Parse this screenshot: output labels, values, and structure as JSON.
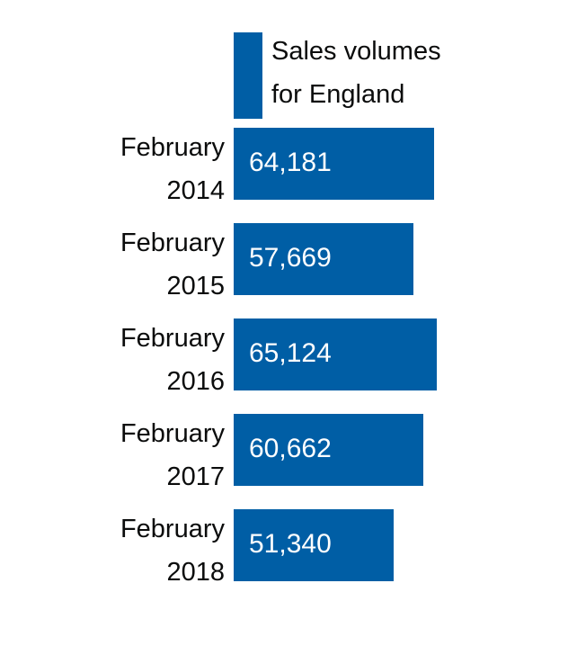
{
  "chart_data": {
    "type": "bar",
    "orientation": "horizontal",
    "categories": [
      [
        "February",
        "2014"
      ],
      [
        "February",
        "2015"
      ],
      [
        "February",
        "2016"
      ],
      [
        "February",
        "2017"
      ],
      [
        "February",
        "2018"
      ]
    ],
    "series": [
      {
        "name": "Sales volumes for England",
        "values": [
          64181,
          57669,
          65124,
          60662,
          51340
        ],
        "labels": [
          "64,181",
          "57,669",
          "65,124",
          "60,662",
          "51,340"
        ],
        "color": "#005ea5"
      }
    ],
    "legend": {
      "position": "top",
      "lines": [
        "Sales volumes",
        "for England"
      ]
    },
    "xlim": [
      0,
      65124
    ],
    "grid": false
  }
}
